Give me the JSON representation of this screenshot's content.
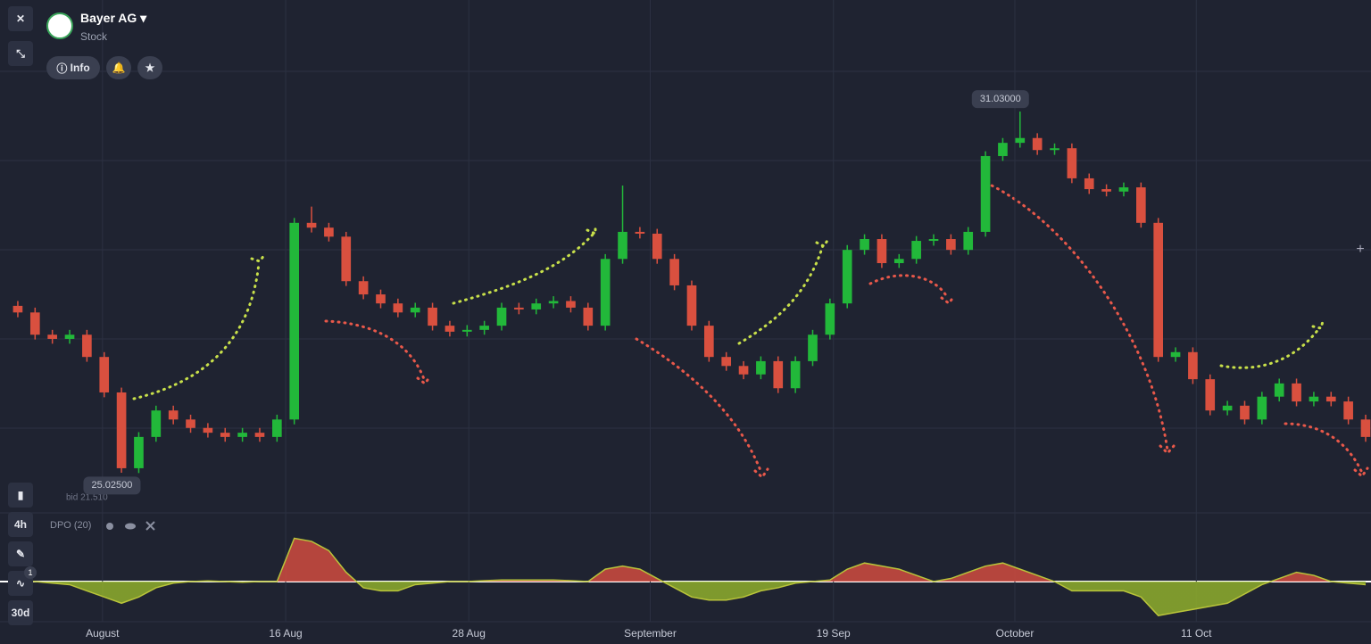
{
  "header": {
    "title": "Bayer AG",
    "subtitle": "Stock",
    "info_button": "Info",
    "bid": "bid 21.510",
    "timeframe": "4h",
    "period": "30d",
    "badge": "1"
  },
  "chart_data": {
    "type": "candlestick",
    "x": [
      0,
      1,
      2,
      3,
      4,
      5,
      6,
      7,
      8,
      9,
      10,
      11,
      12,
      13,
      14,
      15,
      16,
      17,
      18,
      19,
      20,
      21,
      22,
      23,
      24,
      25,
      26,
      27,
      28,
      29,
      30,
      31,
      32,
      33,
      34,
      35,
      36,
      37,
      38,
      39,
      40,
      41,
      42,
      43,
      44,
      45,
      46,
      47,
      48,
      49,
      50,
      51,
      52,
      53,
      54,
      55,
      56,
      57,
      58,
      59,
      60,
      61,
      62,
      63,
      64,
      65,
      66,
      67,
      68,
      69,
      70,
      71,
      72,
      73,
      74,
      75,
      76,
      77,
      78
    ],
    "open": [
      27.8,
      27.69,
      27.32,
      27.25,
      27.32,
      26.95,
      26.36,
      25.1,
      25.62,
      26.06,
      25.91,
      25.77,
      25.69,
      25.62,
      25.69,
      25.62,
      25.91,
      29.18,
      29.1,
      28.95,
      28.21,
      27.99,
      27.84,
      27.69,
      27.77,
      27.47,
      27.37,
      27.4,
      27.47,
      27.77,
      27.74,
      27.84,
      27.88,
      27.77,
      27.47,
      28.58,
      29.03,
      29.0,
      28.58,
      28.14,
      27.47,
      26.95,
      26.8,
      26.66,
      26.88,
      26.43,
      26.88,
      27.32,
      27.84,
      28.73,
      28.91,
      28.51,
      28.58,
      28.88,
      28.91,
      28.73,
      29.03,
      30.29,
      30.51,
      30.59,
      30.39,
      30.42,
      29.92,
      29.74,
      29.7,
      29.77,
      29.18,
      26.95,
      27.03,
      26.58,
      26.06,
      26.14,
      25.91,
      26.29,
      26.51,
      26.21,
      26.29,
      26.21,
      25.91
    ],
    "high": [
      27.88,
      27.77,
      27.4,
      27.4,
      27.4,
      27.03,
      26.44,
      25.7,
      26.14,
      26.14,
      25.99,
      25.85,
      25.77,
      25.77,
      25.77,
      25.99,
      29.26,
      29.45,
      29.18,
      29.03,
      28.29,
      28.07,
      27.92,
      27.85,
      27.85,
      27.55,
      27.48,
      27.55,
      27.85,
      27.85,
      27.92,
      27.96,
      27.96,
      27.85,
      28.66,
      29.8,
      29.11,
      29.08,
      28.66,
      28.22,
      27.55,
      27.03,
      26.88,
      26.96,
      26.96,
      26.96,
      27.4,
      27.92,
      28.81,
      28.99,
      28.99,
      28.66,
      28.96,
      28.99,
      28.99,
      29.11,
      30.37,
      30.59,
      31.03,
      30.67,
      30.5,
      30.5,
      30.0,
      29.82,
      29.85,
      29.85,
      29.26,
      27.11,
      27.11,
      26.66,
      26.22,
      26.22,
      26.37,
      26.59,
      26.59,
      26.37,
      26.37,
      26.29,
      25.99
    ],
    "low": [
      27.61,
      27.24,
      27.17,
      27.17,
      26.87,
      26.28,
      25.025,
      25.02,
      25.54,
      25.83,
      25.69,
      25.61,
      25.54,
      25.54,
      25.54,
      25.54,
      25.83,
      29.02,
      28.87,
      28.13,
      27.91,
      27.76,
      27.61,
      27.61,
      27.39,
      27.29,
      27.29,
      27.32,
      27.39,
      27.66,
      27.66,
      27.76,
      27.69,
      27.39,
      27.39,
      28.5,
      28.92,
      28.5,
      28.06,
      27.39,
      26.87,
      26.72,
      26.58,
      26.58,
      26.35,
      26.35,
      26.8,
      27.24,
      27.76,
      28.65,
      28.43,
      28.43,
      28.5,
      28.8,
      28.65,
      28.65,
      28.95,
      30.21,
      30.43,
      30.31,
      30.31,
      29.84,
      29.66,
      29.62,
      29.62,
      29.1,
      26.87,
      26.87,
      26.5,
      25.98,
      25.98,
      25.83,
      25.83,
      26.21,
      26.13,
      26.13,
      26.13,
      25.83,
      25.54
    ],
    "close": [
      27.69,
      27.32,
      27.25,
      27.32,
      26.95,
      26.36,
      25.1,
      25.62,
      26.06,
      25.91,
      25.77,
      25.69,
      25.62,
      25.69,
      25.62,
      25.91,
      29.18,
      29.1,
      28.95,
      28.21,
      27.99,
      27.84,
      27.69,
      27.77,
      27.47,
      27.37,
      27.4,
      27.47,
      27.77,
      27.74,
      27.84,
      27.88,
      27.77,
      27.47,
      28.58,
      29.03,
      29.0,
      28.58,
      28.14,
      27.47,
      26.95,
      26.8,
      26.66,
      26.88,
      26.43,
      26.88,
      27.32,
      27.84,
      28.73,
      28.91,
      28.51,
      28.58,
      28.88,
      28.91,
      28.73,
      29.03,
      30.29,
      30.51,
      30.59,
      30.39,
      30.42,
      29.92,
      29.74,
      29.7,
      29.77,
      29.18,
      26.95,
      27.03,
      26.58,
      26.06,
      26.14,
      25.91,
      26.29,
      26.51,
      26.21,
      26.29,
      26.21,
      25.91,
      25.62
    ],
    "up_color": "#22b83a",
    "down_color": "#d9503f",
    "high_label": "31.03000",
    "low_label": "25.02500",
    "xlim": [
      -1.03,
      78.31
    ],
    "ylim": [
      24.58,
      32.44
    ],
    "xticks": [
      {
        "value": 4.9,
        "label": "August"
      },
      {
        "value": 15.5,
        "label": "16 Aug"
      },
      {
        "value": 26.1,
        "label": "28 Aug"
      },
      {
        "value": 36.6,
        "label": "September"
      },
      {
        "value": 47.2,
        "label": "19 Sep"
      },
      {
        "value": 57.7,
        "label": "October"
      },
      {
        "value": 68.2,
        "label": "11 Oct"
      }
    ],
    "indicator": {
      "name": "DPO (20)",
      "ylim": [
        -1.5,
        1.5
      ],
      "up_color": "#cf4b3f",
      "down_color": "#8fae2c",
      "line_color": "#b9c43a",
      "values": [
        0.05,
        0,
        -0.05,
        -0.1,
        -0.3,
        -0.5,
        -0.7,
        -0.5,
        -0.2,
        -0.05,
        0,
        0.02,
        0,
        -0.02,
        0,
        0,
        1.4,
        1.3,
        1.0,
        0.3,
        -0.2,
        -0.3,
        -0.3,
        -0.1,
        -0.05,
        0,
        0,
        0.03,
        0.05,
        0.05,
        0.05,
        0.05,
        0.03,
        0,
        0.4,
        0.5,
        0.4,
        0.1,
        -0.2,
        -0.5,
        -0.6,
        -0.6,
        -0.5,
        -0.3,
        -0.2,
        -0.05,
        0,
        0.05,
        0.4,
        0.6,
        0.5,
        0.4,
        0.2,
        0,
        0.1,
        0.3,
        0.5,
        0.6,
        0.4,
        0.2,
        0,
        -0.3,
        -0.3,
        -0.3,
        -0.3,
        -0.5,
        -1.1,
        -1.0,
        -0.9,
        -0.8,
        -0.7,
        -0.4,
        -0.1,
        0.1,
        0.3,
        0.2,
        0,
        -0.05,
        -0.1
      ]
    }
  }
}
